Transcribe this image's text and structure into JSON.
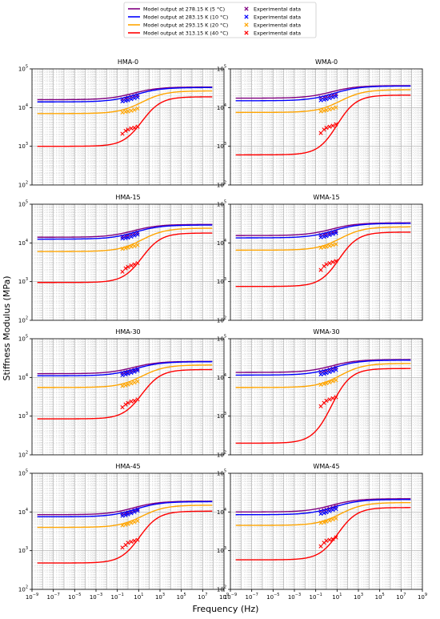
{
  "figure": {
    "ylabel": "Stiffness Modulus (MPa)",
    "xlabel": "Frequency (Hz)"
  },
  "legend": {
    "placement": "top-center",
    "model_entries": [
      {
        "label": "Model output at 278.15 K (5 °C)",
        "color": "#800080"
      },
      {
        "label": "Model output at 283.15 K (10 °C)",
        "color": "#0000ff"
      },
      {
        "label": "Model output at 293.15 K (20 °C)",
        "color": "#ffa500"
      },
      {
        "label": "Model output at 313.15 K (40 °C)",
        "color": "#ff0000"
      }
    ],
    "exp_entries": [
      {
        "label": "Experimental data",
        "color": "#800080"
      },
      {
        "label": "Experimental data",
        "color": "#0000ff"
      },
      {
        "label": "Experimental data",
        "color": "#ffa500"
      },
      {
        "label": "Experimental data",
        "color": "#ff0000"
      }
    ]
  },
  "x_ticks": [
    "10^-9",
    "10^-7",
    "10^-5",
    "10^-3",
    "10^-1",
    "10^1",
    "10^3",
    "10^5",
    "10^7",
    "10^9"
  ],
  "y_ticks": [
    "10^2",
    "10^3",
    "10^4",
    "10^5"
  ],
  "chart_data": [
    {
      "type": "line",
      "title": "HMA-0",
      "xscale": "log",
      "yscale": "log",
      "xlim": [
        1e-09,
        1000000000.0
      ],
      "ylim": [
        100,
        100000
      ],
      "grid": true,
      "series": [
        {
          "name": "Model output at 278.15 K (5 °C)",
          "color": "#800080",
          "low": 16000,
          "high": 34000,
          "center": 3,
          "width": 1.2,
          "exp_x": [
            0.3,
            0.6,
            1,
            2,
            4,
            8
          ],
          "exp_y": [
            16500,
            17000,
            18000,
            19000,
            20000,
            21000
          ]
        },
        {
          "name": "Model output at 283.15 K (10 °C)",
          "color": "#0000ff",
          "low": 14000,
          "high": 33000,
          "center": 5,
          "width": 1.2,
          "exp_x": [
            0.3,
            0.6,
            1,
            2,
            4,
            8
          ],
          "exp_y": [
            14500,
            15000,
            15500,
            16500,
            17500,
            18500
          ]
        },
        {
          "name": "Model output at 293.15 K (20 °C)",
          "color": "#ffa500",
          "low": 7000,
          "high": 27000,
          "center": 20,
          "width": 1.1,
          "exp_x": [
            0.3,
            0.6,
            1,
            2,
            4,
            8
          ],
          "exp_y": [
            7500,
            7800,
            8000,
            8300,
            8700,
            9500
          ]
        },
        {
          "name": "Model output at 313.15 K (40 °C)",
          "color": "#ff0000",
          "low": 1000,
          "high": 19000,
          "center": 20,
          "width": 0.9,
          "exp_x": [
            0.3,
            0.6,
            1,
            2,
            4,
            8
          ],
          "exp_y": [
            2100,
            2500,
            2700,
            2900,
            3000,
            3200
          ]
        }
      ]
    },
    {
      "type": "line",
      "title": "WMA-0",
      "xscale": "log",
      "yscale": "log",
      "xlim": [
        1e-09,
        1000000000.0
      ],
      "ylim": [
        100,
        100000
      ],
      "grid": true,
      "series": [
        {
          "name": "Model output at 278.15 K (5 °C)",
          "color": "#800080",
          "low": 17500,
          "high": 37000,
          "center": 3,
          "width": 1.2,
          "exp_x": [
            0.3,
            0.6,
            1,
            2,
            4,
            8
          ],
          "exp_y": [
            18000,
            18500,
            19000,
            20000,
            21000,
            22000
          ]
        },
        {
          "name": "Model output at 283.15 K (10 °C)",
          "color": "#0000ff",
          "low": 15000,
          "high": 36000,
          "center": 5,
          "width": 1.2,
          "exp_x": [
            0.3,
            0.6,
            1,
            2,
            4,
            8
          ],
          "exp_y": [
            15500,
            16000,
            16500,
            17500,
            18500,
            19500
          ]
        },
        {
          "name": "Model output at 293.15 K (20 °C)",
          "color": "#ffa500",
          "low": 7500,
          "high": 29000,
          "center": 20,
          "width": 1.1,
          "exp_x": [
            0.3,
            0.6,
            1,
            2,
            4,
            8
          ],
          "exp_y": [
            8000,
            8300,
            8600,
            9000,
            9500,
            10000
          ]
        },
        {
          "name": "Model output at 313.15 K (40 °C)",
          "color": "#ff0000",
          "low": 600,
          "high": 21000,
          "center": 10,
          "width": 0.9,
          "exp_x": [
            0.3,
            0.6,
            1,
            2,
            4,
            8
          ],
          "exp_y": [
            2200,
            2700,
            3000,
            3200,
            3400,
            3700
          ]
        }
      ]
    },
    {
      "type": "line",
      "title": "HMA-15",
      "xscale": "log",
      "yscale": "log",
      "xlim": [
        1e-09,
        1000000000.0
      ],
      "ylim": [
        100,
        100000
      ],
      "grid": true,
      "series": [
        {
          "name": "Model output at 278.15 K (5 °C)",
          "color": "#800080",
          "low": 14000,
          "high": 30000,
          "center": 3,
          "width": 1.2,
          "exp_x": [
            0.3,
            0.6,
            1,
            2,
            4,
            8
          ],
          "exp_y": [
            14500,
            15000,
            15500,
            16500,
            17500,
            18500
          ]
        },
        {
          "name": "Model output at 283.15 K (10 °C)",
          "color": "#0000ff",
          "low": 12500,
          "high": 29000,
          "center": 5,
          "width": 1.2,
          "exp_x": [
            0.3,
            0.6,
            1,
            2,
            4,
            8
          ],
          "exp_y": [
            13000,
            13300,
            13700,
            14500,
            15500,
            16500
          ]
        },
        {
          "name": "Model output at 293.15 K (20 °C)",
          "color": "#ffa500",
          "low": 6000,
          "high": 24000,
          "center": 20,
          "width": 1.1,
          "exp_x": [
            0.3,
            0.6,
            1,
            2,
            4,
            8
          ],
          "exp_y": [
            7000,
            7300,
            7600,
            8000,
            8300,
            8800
          ]
        },
        {
          "name": "Model output at 313.15 K (40 °C)",
          "color": "#ff0000",
          "low": 950,
          "high": 18000,
          "center": 20,
          "width": 0.9,
          "exp_x": [
            0.3,
            0.6,
            1,
            2,
            4,
            8
          ],
          "exp_y": [
            1800,
            2200,
            2400,
            2600,
            2800,
            3000
          ]
        }
      ]
    },
    {
      "type": "line",
      "title": "WMA-15",
      "xscale": "log",
      "yscale": "log",
      "xlim": [
        1e-09,
        1000000000.0
      ],
      "ylim": [
        100,
        100000
      ],
      "grid": true,
      "series": [
        {
          "name": "Model output at 278.15 K (5 °C)",
          "color": "#800080",
          "low": 15500,
          "high": 33000,
          "center": 3,
          "width": 1.2,
          "exp_x": [
            0.3,
            0.6,
            1,
            2,
            4,
            8
          ],
          "exp_y": [
            16000,
            16500,
            17000,
            18000,
            19000,
            20000
          ]
        },
        {
          "name": "Model output at 283.15 K (10 °C)",
          "color": "#0000ff",
          "low": 13500,
          "high": 32000,
          "center": 5,
          "width": 1.2,
          "exp_x": [
            0.3,
            0.6,
            1,
            2,
            4,
            8
          ],
          "exp_y": [
            14000,
            14500,
            15000,
            16000,
            17000,
            18000
          ]
        },
        {
          "name": "Model output at 293.15 K (20 °C)",
          "color": "#ffa500",
          "low": 6500,
          "high": 26000,
          "center": 20,
          "width": 1.1,
          "exp_x": [
            0.3,
            0.6,
            1,
            2,
            4,
            8
          ],
          "exp_y": [
            7500,
            7800,
            8000,
            8400,
            8800,
            9300
          ]
        },
        {
          "name": "Model output at 313.15 K (40 °C)",
          "color": "#ff0000",
          "low": 750,
          "high": 19000,
          "center": 15,
          "width": 0.9,
          "exp_x": [
            0.3,
            0.6,
            1,
            2,
            4,
            8
          ],
          "exp_y": [
            2000,
            2500,
            2800,
            3000,
            3200,
            3400
          ]
        }
      ]
    },
    {
      "type": "line",
      "title": "HMA-30",
      "xscale": "log",
      "yscale": "log",
      "xlim": [
        1e-09,
        1000000000.0
      ],
      "ylim": [
        100,
        100000
      ],
      "grid": true,
      "series": [
        {
          "name": "Model output at 278.15 K (5 °C)",
          "color": "#800080",
          "low": 12500,
          "high": 26000,
          "center": 3,
          "width": 1.2,
          "exp_x": [
            0.3,
            0.6,
            1,
            2,
            4,
            8
          ],
          "exp_y": [
            13000,
            13500,
            14000,
            14800,
            15500,
            16500
          ]
        },
        {
          "name": "Model output at 283.15 K (10 °C)",
          "color": "#0000ff",
          "low": 11000,
          "high": 25500,
          "center": 5,
          "width": 1.2,
          "exp_x": [
            0.3,
            0.6,
            1,
            2,
            4,
            8
          ],
          "exp_y": [
            11500,
            12000,
            12500,
            13200,
            14000,
            15000
          ]
        },
        {
          "name": "Model output at 293.15 K (20 °C)",
          "color": "#ffa500",
          "low": 5500,
          "high": 21000,
          "center": 20,
          "width": 1.1,
          "exp_x": [
            0.3,
            0.6,
            1,
            2,
            4,
            8
          ],
          "exp_y": [
            6000,
            6300,
            6600,
            7000,
            7400,
            7900
          ]
        },
        {
          "name": "Model output at 313.15 K (40 °C)",
          "color": "#ff0000",
          "low": 850,
          "high": 16000,
          "center": 20,
          "width": 0.9,
          "exp_x": [
            0.3,
            0.6,
            1,
            2,
            4,
            8
          ],
          "exp_y": [
            1700,
            2000,
            2200,
            2400,
            2500,
            2700
          ]
        }
      ]
    },
    {
      "type": "line",
      "title": "WMA-30",
      "xscale": "log",
      "yscale": "log",
      "xlim": [
        1e-09,
        1000000000.0
      ],
      "ylim": [
        100,
        100000
      ],
      "grid": true,
      "series": [
        {
          "name": "Model output at 278.15 K (5 °C)",
          "color": "#800080",
          "low": 13500,
          "high": 29000,
          "center": 3,
          "width": 1.2,
          "exp_x": [
            0.3,
            0.6,
            1,
            2,
            4,
            8
          ],
          "exp_y": [
            14000,
            14500,
            15000,
            16000,
            17000,
            18000
          ]
        },
        {
          "name": "Model output at 283.15 K (10 °C)",
          "color": "#0000ff",
          "low": 11500,
          "high": 28000,
          "center": 5,
          "width": 1.2,
          "exp_x": [
            0.3,
            0.6,
            1,
            2,
            4,
            8
          ],
          "exp_y": [
            12000,
            12500,
            13000,
            13800,
            14700,
            15700
          ]
        },
        {
          "name": "Model output at 293.15 K (20 °C)",
          "color": "#ffa500",
          "low": 5500,
          "high": 23000,
          "center": 20,
          "width": 1.1,
          "exp_x": [
            0.3,
            0.6,
            1,
            2,
            4,
            8
          ],
          "exp_y": [
            6500,
            6800,
            7100,
            7500,
            8000,
            8500
          ]
        },
        {
          "name": "Model output at 313.15 K (40 °C)",
          "color": "#ff0000",
          "low": 200,
          "high": 17000,
          "center": 3,
          "width": 0.9,
          "exp_x": [
            0.3,
            0.6,
            1,
            2,
            4,
            8
          ],
          "exp_y": [
            1800,
            2200,
            2500,
            2700,
            2900,
            3100
          ]
        }
      ]
    },
    {
      "type": "line",
      "title": "HMA-45",
      "xscale": "log",
      "yscale": "log",
      "xlim": [
        1e-09,
        1000000000.0
      ],
      "ylim": [
        100,
        100000
      ],
      "grid": true,
      "series": [
        {
          "name": "Model output at 278.15 K (5 °C)",
          "color": "#800080",
          "low": 8500,
          "high": 19000,
          "center": 3,
          "width": 1.2,
          "exp_x": [
            0.3,
            0.6,
            1,
            2,
            4,
            8
          ],
          "exp_y": [
            9000,
            9300,
            9700,
            10300,
            11000,
            11800
          ]
        },
        {
          "name": "Model output at 283.15 K (10 °C)",
          "color": "#0000ff",
          "low": 7500,
          "high": 18500,
          "center": 5,
          "width": 1.2,
          "exp_x": [
            0.3,
            0.6,
            1,
            2,
            4,
            8
          ],
          "exp_y": [
            8000,
            8300,
            8700,
            9300,
            10000,
            10800
          ]
        },
        {
          "name": "Model output at 293.15 K (20 °C)",
          "color": "#ffa500",
          "low": 4000,
          "high": 15000,
          "center": 20,
          "width": 1.1,
          "exp_x": [
            0.3,
            0.6,
            1,
            2,
            4,
            8
          ],
          "exp_y": [
            4500,
            4700,
            4900,
            5200,
            5500,
            5900
          ]
        },
        {
          "name": "Model output at 313.15 K (40 °C)",
          "color": "#ff0000",
          "low": 480,
          "high": 10500,
          "center": 12,
          "width": 0.9,
          "exp_x": [
            0.3,
            0.6,
            1,
            2,
            4,
            8
          ],
          "exp_y": [
            1200,
            1400,
            1600,
            1700,
            1800,
            1900
          ]
        }
      ]
    },
    {
      "type": "line",
      "title": "WMA-45",
      "xscale": "log",
      "yscale": "log",
      "xlim": [
        1e-09,
        1000000000.0
      ],
      "ylim": [
        100,
        100000
      ],
      "grid": true,
      "series": [
        {
          "name": "Model output at 278.15 K (5 °C)",
          "color": "#800080",
          "low": 10000,
          "high": 22000,
          "center": 3,
          "width": 1.2,
          "exp_x": [
            0.3,
            0.6,
            1,
            2,
            4,
            8
          ],
          "exp_y": [
            10500,
            11000,
            11500,
            12200,
            13000,
            13800
          ]
        },
        {
          "name": "Model output at 283.15 K (10 °C)",
          "color": "#0000ff",
          "low": 8500,
          "high": 21000,
          "center": 5,
          "width": 1.2,
          "exp_x": [
            0.3,
            0.6,
            1,
            2,
            4,
            8
          ],
          "exp_y": [
            9000,
            9400,
            9800,
            10500,
            11300,
            12000
          ]
        },
        {
          "name": "Model output at 293.15 K (20 °C)",
          "color": "#ffa500",
          "low": 4500,
          "high": 17500,
          "center": 20,
          "width": 1.1,
          "exp_x": [
            0.3,
            0.6,
            1,
            2,
            4,
            8
          ],
          "exp_y": [
            5200,
            5400,
            5700,
            6000,
            6400,
            6800
          ]
        },
        {
          "name": "Model output at 313.15 K (40 °C)",
          "color": "#ff0000",
          "low": 580,
          "high": 13000,
          "center": 12,
          "width": 0.9,
          "exp_x": [
            0.3,
            0.6,
            1,
            2,
            4,
            8
          ],
          "exp_y": [
            1300,
            1600,
            1800,
            1900,
            2000,
            2200
          ]
        }
      ]
    }
  ]
}
